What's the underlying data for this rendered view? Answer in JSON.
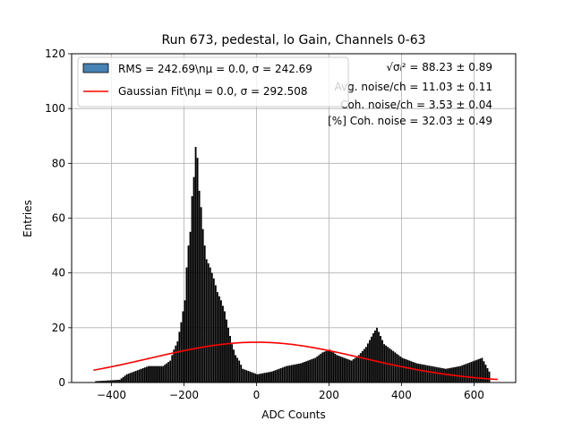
{
  "chart_data": {
    "type": "bar",
    "title": "Run 673, pedestal, lo Gain, Channels 0-63",
    "xlabel": "ADC Counts",
    "ylabel": "Entries",
    "xlim": [
      -510,
      715
    ],
    "ylim": [
      0,
      120
    ],
    "xticks": [
      -400,
      -200,
      0,
      200,
      400,
      600
    ],
    "yticks": [
      0,
      20,
      40,
      60,
      80,
      100,
      120
    ],
    "grid": true,
    "legend_position": "top-left",
    "histogram": {
      "name": "RMS = 242.69\\n$\\mu$ = 0.0, $\\sigma$ = 242.69",
      "label_text": "RMS = 242.69\\nμ = 0.0, σ = 242.69",
      "color": "#000000",
      "legend_color": "#4682b4",
      "bin_width": 5,
      "bins": [
        [
          -445,
          0.5
        ],
        [
          -380,
          1
        ],
        [
          -360,
          3
        ],
        [
          -340,
          4
        ],
        [
          -320,
          5
        ],
        [
          -300,
          6
        ],
        [
          -280,
          6
        ],
        [
          -260,
          6
        ],
        [
          -240,
          8
        ],
        [
          -230,
          12
        ],
        [
          -220,
          15
        ],
        [
          -210,
          22
        ],
        [
          -200,
          30
        ],
        [
          -195,
          42
        ],
        [
          -190,
          50
        ],
        [
          -185,
          55
        ],
        [
          -180,
          68
        ],
        [
          -175,
          75
        ],
        [
          -170,
          86
        ],
        [
          -165,
          82
        ],
        [
          -160,
          70
        ],
        [
          -155,
          64
        ],
        [
          -150,
          56
        ],
        [
          -145,
          50
        ],
        [
          -140,
          45
        ],
        [
          -130,
          42
        ],
        [
          -120,
          38
        ],
        [
          -110,
          33
        ],
        [
          -100,
          30
        ],
        [
          -90,
          26
        ],
        [
          -80,
          20
        ],
        [
          -70,
          14
        ],
        [
          -60,
          10
        ],
        [
          -50,
          8
        ],
        [
          -40,
          5
        ],
        [
          -20,
          4
        ],
        [
          0,
          3
        ],
        [
          40,
          4
        ],
        [
          80,
          6
        ],
        [
          120,
          7
        ],
        [
          160,
          9
        ],
        [
          180,
          11
        ],
        [
          200,
          12
        ],
        [
          220,
          10
        ],
        [
          240,
          9
        ],
        [
          260,
          8
        ],
        [
          280,
          10
        ],
        [
          300,
          13
        ],
        [
          320,
          18
        ],
        [
          330,
          20
        ],
        [
          340,
          17
        ],
        [
          350,
          14
        ],
        [
          370,
          12
        ],
        [
          400,
          9
        ],
        [
          440,
          7
        ],
        [
          480,
          6
        ],
        [
          520,
          5
        ],
        [
          560,
          6
        ],
        [
          600,
          8
        ],
        [
          620,
          9
        ],
        [
          640,
          4
        ]
      ]
    },
    "fit": {
      "name": "Gaussian Fit\\n$\\mu$ = 0.0, $\\sigma$ = 292.508",
      "label_text": "Gaussian Fit\\nμ = 0.0, σ = 292.508",
      "color": "#ff0000",
      "mu": 0.0,
      "sigma": 292.508,
      "amplitude": 14.7,
      "x_range": [
        -450,
        665
      ]
    },
    "annotations": [
      "√σᵢ² = 88.23 ± 0.89",
      "Avg. noise/ch = 11.03 ± 0.11",
      "Coh. noise/ch = 3.53 ± 0.04",
      "[%] Coh. noise = 32.03 ± 0.49"
    ]
  }
}
